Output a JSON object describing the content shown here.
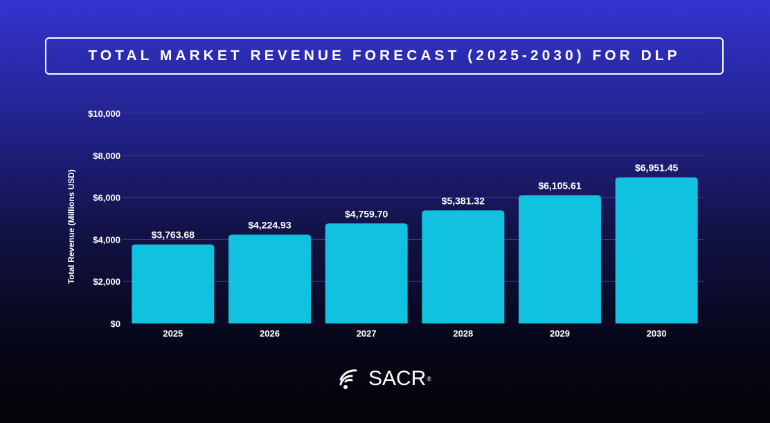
{
  "title": "TOTAL MARKET REVENUE FORECAST (2025-2030) FOR DLP",
  "logo": {
    "text": "SACR",
    "mark": "®",
    "icon": "wifi-signal-icon"
  },
  "colors": {
    "bar": "#10c2e0",
    "grid": "#3a3a8a",
    "text": "#ffffff"
  },
  "chart_data": {
    "type": "bar",
    "categories": [
      "2025",
      "2026",
      "2027",
      "2028",
      "2029",
      "2030"
    ],
    "values": [
      3763.68,
      4224.93,
      4759.7,
      5381.32,
      6105.61,
      6951.45
    ],
    "value_labels": [
      "$3,763.68",
      "$4,224.93",
      "$4,759.70",
      "$5,381.32",
      "$6,105.61",
      "$6,951.45"
    ],
    "ylabel": "Total Revenue (Millions USD)",
    "xlabel": "",
    "ylim": [
      0,
      10000
    ],
    "yticks": [
      0,
      2000,
      4000,
      6000,
      8000,
      10000
    ],
    "ytick_labels": [
      "$0",
      "$2,000",
      "$4,000",
      "$6,000",
      "$8,000",
      "$10,000"
    ],
    "grid": true,
    "legend": "none"
  }
}
